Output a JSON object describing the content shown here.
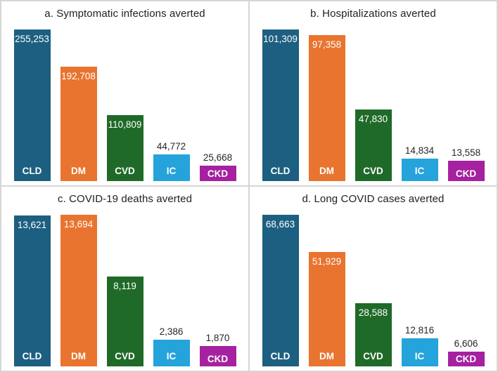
{
  "palette": {
    "CLD": "#1d5f80",
    "DM": "#e8742f",
    "CVD": "#1f6a28",
    "IC": "#25a3db",
    "CKD": "#a521a0"
  },
  "text_colors": {
    "title": "#212121",
    "outside_value": "#262626",
    "inside_value": "#ffffff"
  },
  "chart_data": [
    {
      "type": "bar",
      "title": "a. Symptomatic infections averted",
      "categories": [
        "CLD",
        "DM",
        "CVD",
        "IC",
        "CKD"
      ],
      "values": [
        255253,
        192708,
        110809,
        44772,
        25668
      ],
      "value_labels": [
        "255,253",
        "192,708",
        "110,809",
        "44,772",
        "25,668"
      ],
      "xlabel": "",
      "ylabel": "",
      "grid": false,
      "legend": "none"
    },
    {
      "type": "bar",
      "title": "b. Hospitalizations averted",
      "categories": [
        "CLD",
        "DM",
        "CVD",
        "IC",
        "CKD"
      ],
      "values": [
        101309,
        97358,
        47830,
        14834,
        13558
      ],
      "value_labels": [
        "101,309",
        "97,358",
        "47,830",
        "14,834",
        "13,558"
      ],
      "xlabel": "",
      "ylabel": "",
      "grid": false,
      "legend": "none"
    },
    {
      "type": "bar",
      "title": "c. COVID-19 deaths averted",
      "categories": [
        "CLD",
        "DM",
        "CVD",
        "IC",
        "CKD"
      ],
      "values": [
        13621,
        13694,
        8119,
        2386,
        1870
      ],
      "value_labels": [
        "13,621",
        "13,694",
        "8,119",
        "2,386",
        "1,870"
      ],
      "xlabel": "",
      "ylabel": "",
      "grid": false,
      "legend": "none"
    },
    {
      "type": "bar",
      "title": "d. Long COVID cases averted",
      "categories": [
        "CLD",
        "DM",
        "CVD",
        "IC",
        "CKD"
      ],
      "values": [
        68663,
        51929,
        28588,
        12816,
        6606
      ],
      "value_labels": [
        "68,663",
        "51,929",
        "28,588",
        "12,816",
        "6,606"
      ],
      "xlabel": "",
      "ylabel": "",
      "grid": false,
      "legend": "none"
    }
  ]
}
